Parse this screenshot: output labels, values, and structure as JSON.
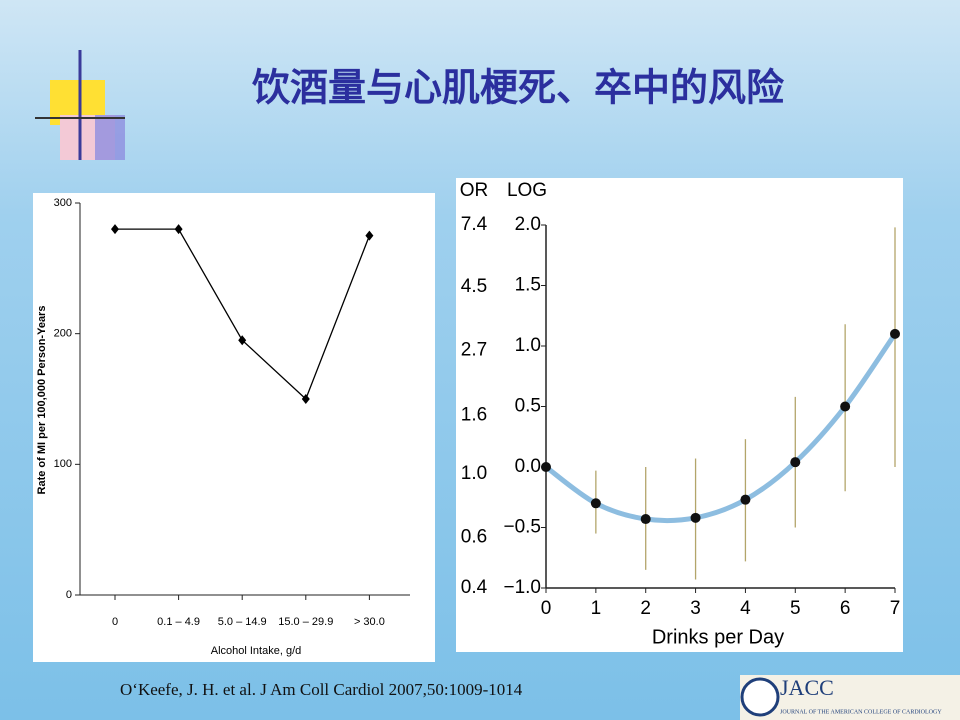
{
  "slide": {
    "title": "饮酒量与心肌梗死、卒中的风险",
    "citation": "O‘Keefe, J. H. et al. J Am Coll Cardiol 2007,50:1009-1014",
    "logo": {
      "name": "JACC",
      "subtitle": "JOURNAL OF THE AMERICAN COLLEGE OF CARDIOLOGY"
    }
  },
  "chart_data": [
    {
      "type": "line",
      "categories": [
        "0",
        "0.1 – 4.9",
        "5.0 – 14.9",
        "15.0 – 29.9",
        "> 30.0"
      ],
      "values": [
        280,
        280,
        195,
        150,
        275
      ],
      "color": "#000000",
      "x_label": "Alcohol Intake, g/d",
      "y_label": "Rate of MI per 100,000 Person-Years",
      "ylim": [
        0,
        300
      ],
      "yticks": [
        0,
        100,
        200,
        300
      ],
      "grid": false
    },
    {
      "type": "scatter",
      "x": [
        0,
        1,
        2,
        3,
        4,
        5,
        6,
        7
      ],
      "values": [
        0,
        -0.3,
        -0.43,
        -0.42,
        -0.27,
        0.04,
        0.5,
        1.1
      ],
      "error_low": [
        null,
        -0.55,
        -0.85,
        -0.93,
        -0.78,
        -0.5,
        -0.2,
        0
      ],
      "error_high": [
        null,
        -0.03,
        0,
        0.07,
        0.23,
        0.58,
        1.18,
        1.98
      ],
      "color": "#111111",
      "curve_color": "#8dbde0",
      "error_color": "#b3a56a",
      "x_label": "Drinks per Day",
      "y_label": "LOG",
      "y2_label": "OR",
      "xlim": [
        0,
        7
      ],
      "xticks": [
        0,
        1,
        2,
        3,
        4,
        5,
        6,
        7
      ],
      "ylim": [
        -1,
        2
      ],
      "yticks": [
        {
          "value": -1,
          "label": "−1.0"
        },
        {
          "value": -0.5,
          "label": "−0.5"
        },
        {
          "value": 0,
          "label": "0.0"
        },
        0.5,
        {
          "value": 1,
          "label": "1.0"
        },
        1.5,
        {
          "value": 2,
          "label": "2.0"
        }
      ],
      "y2scale": "log",
      "y2lim": [
        0.4,
        7.4
      ],
      "y2ticks": [
        0.4,
        0.6,
        {
          "value": 1,
          "label": "1.0"
        },
        1.6,
        2.7,
        4.5,
        7.4
      ],
      "grid": false
    }
  ]
}
